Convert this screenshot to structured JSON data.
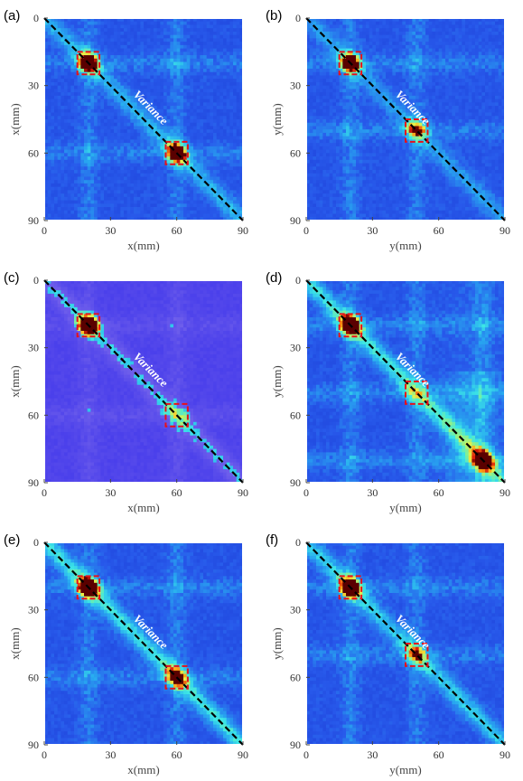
{
  "chart_data": [
    {
      "panel": "(a)",
      "type": "heatmap",
      "xlabel": "x(mm)",
      "ylabel": "x(mm)",
      "xlim": [
        0,
        90
      ],
      "ylim": [
        0,
        90
      ],
      "xticks": [
        "0",
        "30",
        "60",
        "90"
      ],
      "yticks": [
        "0",
        "30",
        "60",
        "90"
      ],
      "annotation": "Variance",
      "highlight_boxes": [
        {
          "x": [
            15,
            25
          ],
          "y": [
            15,
            25
          ]
        },
        {
          "x": [
            55,
            65
          ],
          "y": [
            55,
            65
          ]
        }
      ],
      "peaks": [
        {
          "x": 20,
          "y": 20,
          "v": 1.0
        },
        {
          "x": 60,
          "y": 60,
          "v": 0.88
        }
      ],
      "stripes": [
        20,
        60
      ],
      "diagonal_strength": 0.25,
      "style": "blue",
      "colors": {
        "low": "#1e3fe0",
        "high": "#8b0000"
      }
    },
    {
      "panel": "(b)",
      "type": "heatmap",
      "xlabel": "y(mm)",
      "ylabel": "y(mm)",
      "xlim": [
        0,
        90
      ],
      "ylim": [
        0,
        90
      ],
      "xticks": [
        "0",
        "30",
        "60",
        "90"
      ],
      "yticks": [
        "0",
        "30",
        "60",
        "90"
      ],
      "annotation": "Variance",
      "highlight_boxes": [
        {
          "x": [
            15,
            25
          ],
          "y": [
            15,
            25
          ]
        },
        {
          "x": [
            45,
            55
          ],
          "y": [
            45,
            55
          ]
        }
      ],
      "peaks": [
        {
          "x": 20,
          "y": 20,
          "v": 0.95
        },
        {
          "x": 50,
          "y": 50,
          "v": 0.45
        }
      ],
      "stripes": [
        20,
        50
      ],
      "diagonal_strength": 0.2,
      "style": "blue",
      "colors": {
        "low": "#1e3fe0",
        "high": "#8b0000"
      }
    },
    {
      "panel": "(c)",
      "type": "heatmap",
      "xlabel": "x(mm)",
      "ylabel": "x(mm)",
      "xlim": [
        0,
        90
      ],
      "ylim": [
        0,
        90
      ],
      "xticks": [
        "0",
        "30",
        "60",
        "90"
      ],
      "yticks": [
        "0",
        "30",
        "60",
        "90"
      ],
      "annotation": "Variance",
      "highlight_boxes": [
        {
          "x": [
            15,
            25
          ],
          "y": [
            15,
            25
          ]
        },
        {
          "x": [
            55,
            65
          ],
          "y": [
            55,
            65
          ]
        }
      ],
      "peaks": [
        {
          "x": 20,
          "y": 20,
          "v": 1.0
        }
      ],
      "stripes": [
        20,
        60
      ],
      "diagonal_strength": 0.3,
      "style": "purple",
      "colors": {
        "low": "#3a3ae0",
        "high": "#8b0000"
      }
    },
    {
      "panel": "(d)",
      "type": "heatmap",
      "xlabel": "y(mm)",
      "ylabel": "y(mm)",
      "xlim": [
        0,
        90
      ],
      "ylim": [
        0,
        90
      ],
      "xticks": [
        "0",
        "30",
        "60",
        "90"
      ],
      "yticks": [
        "0",
        "30",
        "60",
        "90"
      ],
      "annotation": "Variance",
      "highlight_boxes": [
        {
          "x": [
            15,
            25
          ],
          "y": [
            15,
            25
          ]
        },
        {
          "x": [
            45,
            55
          ],
          "y": [
            45,
            55
          ]
        }
      ],
      "peaks": [
        {
          "x": 20,
          "y": 20,
          "v": 1.0
        },
        {
          "x": 80,
          "y": 80,
          "v": 0.62
        }
      ],
      "stripes": [
        20,
        50,
        80
      ],
      "diagonal_strength": 0.35,
      "style": "cyan",
      "colors": {
        "low": "#2b4de0",
        "high": "#8b0000"
      }
    },
    {
      "panel": "(e)",
      "type": "heatmap",
      "xlabel": "x(mm)",
      "ylabel": "x(mm)",
      "xlim": [
        0,
        90
      ],
      "ylim": [
        0,
        90
      ],
      "xticks": [
        "0",
        "30",
        "60",
        "90"
      ],
      "yticks": [
        "0",
        "30",
        "60",
        "90"
      ],
      "annotation": "Variance",
      "highlight_boxes": [
        {
          "x": [
            15,
            25
          ],
          "y": [
            15,
            25
          ]
        },
        {
          "x": [
            55,
            65
          ],
          "y": [
            55,
            65
          ]
        }
      ],
      "peaks": [
        {
          "x": 20,
          "y": 20,
          "v": 1.0
        },
        {
          "x": 60,
          "y": 60,
          "v": 0.5
        }
      ],
      "stripes": [
        20,
        60
      ],
      "diagonal_strength": 0.35,
      "style": "blue",
      "colors": {
        "low": "#1e3fe0",
        "high": "#8b0000"
      }
    },
    {
      "panel": "(f)",
      "type": "heatmap",
      "xlabel": "y(mm)",
      "ylabel": "y(mm)",
      "xlim": [
        0,
        90
      ],
      "ylim": [
        0,
        90
      ],
      "xticks": [
        "0",
        "30",
        "60",
        "90"
      ],
      "yticks": [
        "0",
        "30",
        "60",
        "90"
      ],
      "annotation": "Variance",
      "highlight_boxes": [
        {
          "x": [
            15,
            25
          ],
          "y": [
            15,
            25
          ]
        },
        {
          "x": [
            45,
            55
          ],
          "y": [
            45,
            55
          ]
        }
      ],
      "peaks": [
        {
          "x": 20,
          "y": 20,
          "v": 1.0
        },
        {
          "x": 50,
          "y": 50,
          "v": 0.3
        }
      ],
      "stripes": [
        20,
        50
      ],
      "diagonal_strength": 0.3,
      "style": "blue",
      "colors": {
        "low": "#1e3fe0",
        "high": "#8b0000"
      }
    }
  ]
}
